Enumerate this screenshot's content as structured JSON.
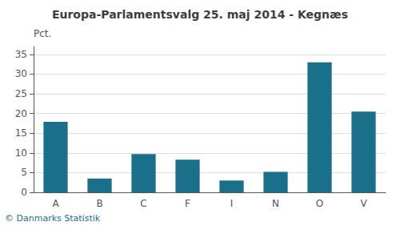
{
  "chart_data": {
    "type": "bar",
    "title": "Europa-Parlamentsvalg 25. maj 2014 - Kegnæs",
    "categories": [
      "A",
      "B",
      "C",
      "F",
      "I",
      "N",
      "O",
      "V"
    ],
    "values": [
      17.9,
      3.5,
      9.7,
      8.3,
      3.0,
      5.2,
      33.0,
      20.5
    ],
    "color": "#1a6f8a",
    "ylabel": "Pct.",
    "ylim": [
      0,
      37
    ],
    "yticks": [
      0,
      5,
      10,
      15,
      20,
      25,
      30,
      35
    ],
    "grid": true,
    "footer": "© Danmarks Statistik"
  }
}
